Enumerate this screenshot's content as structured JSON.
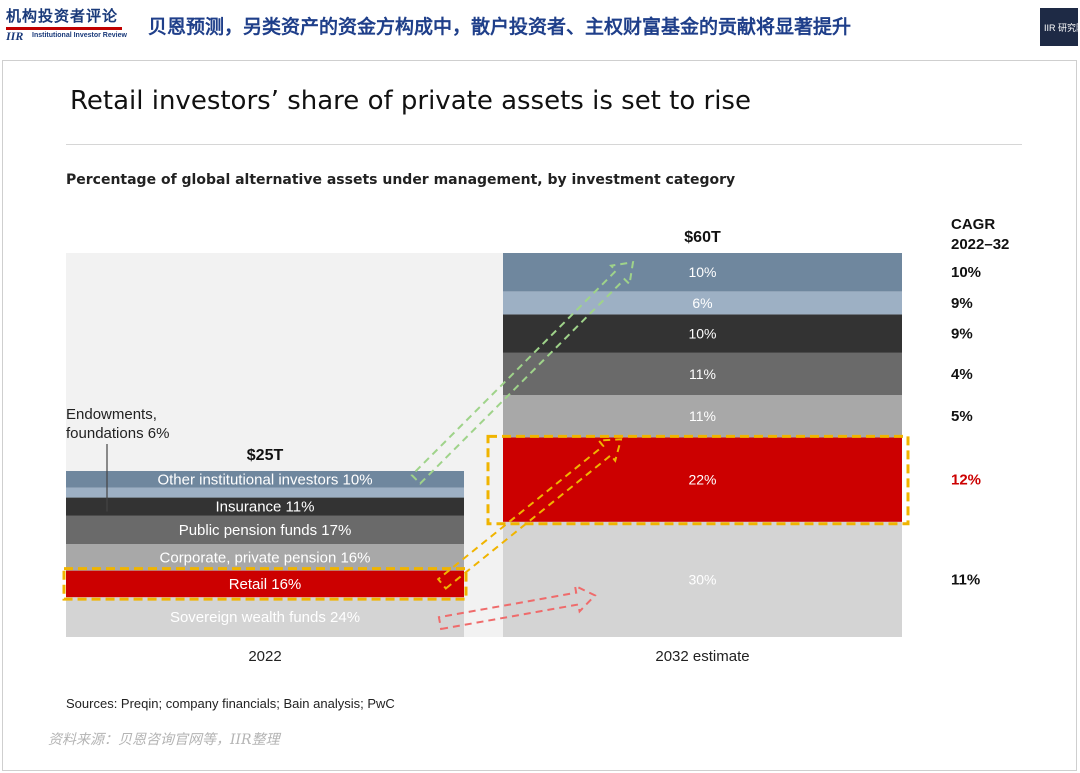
{
  "header": {
    "logo_cn": "机构投资者评论",
    "logo_iir": "IIR",
    "logo_en": "Institutional Investor Review",
    "headline": "贝恩预测，另类资产的资金方构成中，散户投资者、主权财富基金的贡献将显著提升",
    "badge": "IIR 研究院"
  },
  "colors": {
    "headline": "#1f3f8a",
    "retail_highlight": "#cc0000",
    "highlight_box": "#f0b400",
    "arrow_green": "#9fd38a",
    "arrow_orange": "#f0b400",
    "arrow_red": "#ef6b6b"
  },
  "chart_data": {
    "type": "bar",
    "stacked": true,
    "normalized": true,
    "title": "Retail investors’ share of private assets is set to rise",
    "subtitle": "Percentage of global alternative assets under management, by investment category",
    "categories": [
      "2022",
      "2032 estimate"
    ],
    "totals": [
      "$25T",
      "$60T"
    ],
    "cagr_header": "CAGR\n2022–32",
    "series": [
      {
        "name": "Sovereign wealth funds",
        "values": [
          24,
          30
        ],
        "color": "#d4d4d4",
        "label_2022": "Sovereign wealth funds 24%",
        "label_2032": "30%",
        "cagr": "11%",
        "cagr_highlight": false
      },
      {
        "name": "Retail",
        "values": [
          16,
          22
        ],
        "color": "#cc0000",
        "label_2022": "Retail 16%",
        "label_2032": "22%",
        "cagr": "12%",
        "cagr_highlight": true
      },
      {
        "name": "Corporate, private pension",
        "values": [
          16,
          11
        ],
        "color": "#a8a8a8",
        "label_2022": "Corporate, private pension 16%",
        "label_2032": "11%",
        "cagr": "5%",
        "cagr_highlight": false
      },
      {
        "name": "Public pension funds",
        "values": [
          17,
          11
        ],
        "color": "#6a6a6a",
        "label_2022": "Public pension funds 17%",
        "label_2032": "11%",
        "cagr": "4%",
        "cagr_highlight": false
      },
      {
        "name": "Insurance",
        "values": [
          11,
          10
        ],
        "color": "#333333",
        "label_2022": "Insurance 11%",
        "label_2032": "10%",
        "cagr": "9%",
        "cagr_highlight": false
      },
      {
        "name": "Endowments, foundations",
        "values": [
          6,
          6
        ],
        "color": "#9db0c4",
        "label_2022": "",
        "label_2032": "6%",
        "cagr": "9%",
        "cagr_highlight": false
      },
      {
        "name": "Other institutional investors",
        "values": [
          10,
          10
        ],
        "color": "#6f879e",
        "label_2022": "Other institutional investors 10%",
        "label_2032": "10%",
        "cagr": "10%",
        "cagr_highlight": false
      }
    ],
    "callout": "Endowments,\nfoundations 6%"
  },
  "source": "Sources: Preqin; company financials; Bain analysis; PwC",
  "footnote": "资料来源：贝恩咨询官网等，IIR整理"
}
